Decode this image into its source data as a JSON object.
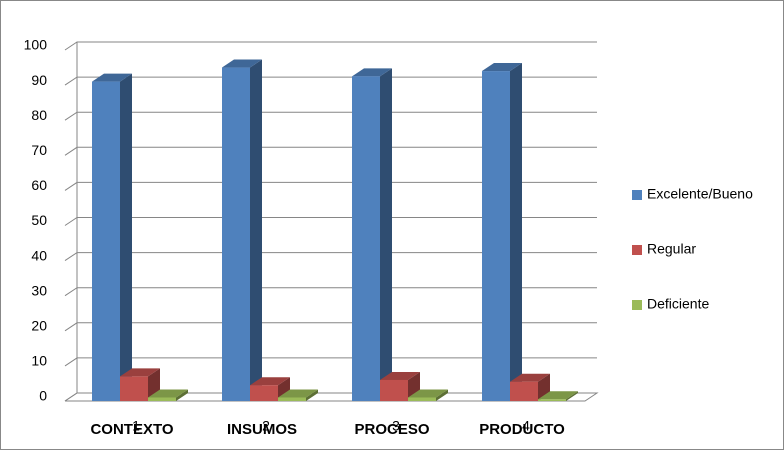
{
  "chart_data": {
    "type": "bar3d",
    "categories": [
      "CONTEXTO",
      "INSUMOS",
      "PROCESO",
      "PRODUCTO"
    ],
    "category_numbers": [
      "1",
      "2",
      "3",
      "4"
    ],
    "series": [
      {
        "name": "Excelente/Bueno",
        "color": "#4f81bd",
        "values": [
          91,
          95,
          92.5,
          94
        ]
      },
      {
        "name": "Regular",
        "color": "#c0504d",
        "values": [
          7,
          4.5,
          6,
          5.5
        ]
      },
      {
        "name": "Deficiente",
        "color": "#9bbb59",
        "values": [
          1,
          1,
          1,
          0.5
        ]
      }
    ],
    "ylim": [
      0,
      100
    ],
    "yticks": [
      0,
      10,
      20,
      30,
      40,
      50,
      60,
      70,
      80,
      90,
      100
    ],
    "grid": true,
    "legend": "right"
  }
}
